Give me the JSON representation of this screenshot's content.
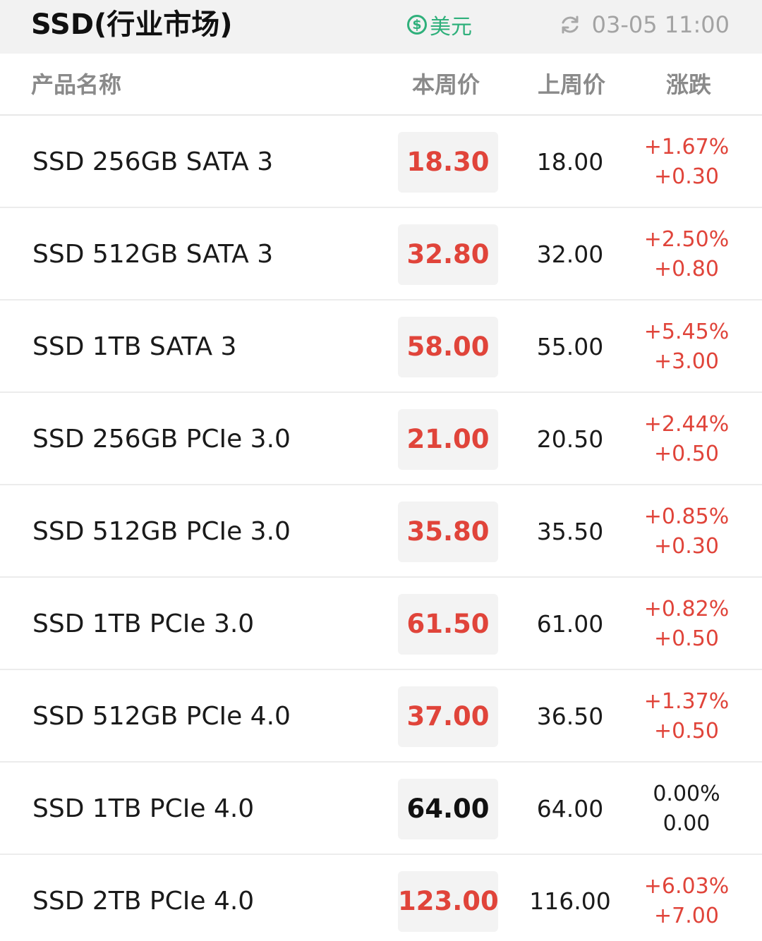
{
  "header": {
    "title": "SSD(行业市场)",
    "currency_icon": "$",
    "currency_label": "美元",
    "updated": "03-05 11:00"
  },
  "columns": {
    "name": "产品名称",
    "current": "本周价",
    "previous": "上周价",
    "change": "涨跌"
  },
  "colors": {
    "up": "#e0443a",
    "flat": "#111111",
    "currency": "#2fb07b"
  },
  "rows": [
    {
      "name": "SSD 256GB SATA 3",
      "current": "18.30",
      "previous": "18.00",
      "pct": "+1.67%",
      "diff": "+0.30",
      "trend": "up"
    },
    {
      "name": "SSD 512GB SATA 3",
      "current": "32.80",
      "previous": "32.00",
      "pct": "+2.50%",
      "diff": "+0.80",
      "trend": "up"
    },
    {
      "name": "SSD 1TB SATA 3",
      "current": "58.00",
      "previous": "55.00",
      "pct": "+5.45%",
      "diff": "+3.00",
      "trend": "up"
    },
    {
      "name": "SSD 256GB PCIe 3.0",
      "current": "21.00",
      "previous": "20.50",
      "pct": "+2.44%",
      "diff": "+0.50",
      "trend": "up"
    },
    {
      "name": "SSD 512GB PCIe 3.0",
      "current": "35.80",
      "previous": "35.50",
      "pct": "+0.85%",
      "diff": "+0.30",
      "trend": "up"
    },
    {
      "name": "SSD 1TB PCIe 3.0",
      "current": "61.50",
      "previous": "61.00",
      "pct": "+0.82%",
      "diff": "+0.50",
      "trend": "up"
    },
    {
      "name": "SSD 512GB PCIe 4.0",
      "current": "37.00",
      "previous": "36.50",
      "pct": "+1.37%",
      "diff": "+0.50",
      "trend": "up"
    },
    {
      "name": "SSD 1TB PCIe 4.0",
      "current": "64.00",
      "previous": "64.00",
      "pct": "0.00%",
      "diff": "0.00",
      "trend": "flat"
    },
    {
      "name": "SSD 2TB PCIe 4.0",
      "current": "123.00",
      "previous": "116.00",
      "pct": "+6.03%",
      "diff": "+7.00",
      "trend": "up"
    }
  ]
}
